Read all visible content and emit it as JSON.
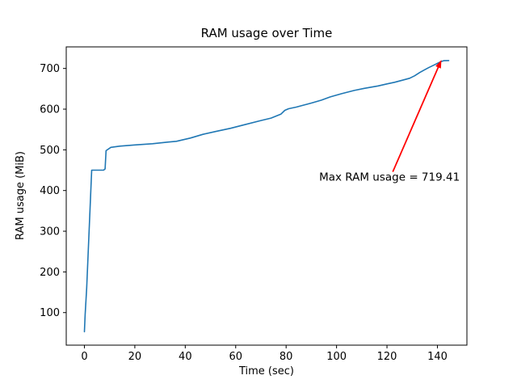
{
  "figure": {
    "background": "#ffffff"
  },
  "chart_data": {
    "type": "line",
    "title": "RAM usage over Time",
    "xlabel": "Time (sec)",
    "ylabel": "RAM usage (MiB)",
    "xlim": [
      -7.2,
      151.7
    ],
    "ylim": [
      20,
      753
    ],
    "xticks": [
      0,
      20,
      40,
      60,
      80,
      100,
      120,
      140
    ],
    "yticks": [
      100,
      200,
      300,
      400,
      500,
      600,
      700
    ],
    "grid": false,
    "legend": null,
    "line_color": "#1f77b4",
    "axis_color": "#000000",
    "series": [
      {
        "name": "RAM usage",
        "x": [
          0,
          0.3,
          0.9,
          2.9,
          7.6,
          8.2,
          8.6,
          10.5,
          14,
          20,
          27,
          33,
          36.5,
          42,
          47,
          52,
          58,
          63,
          70,
          74,
          78,
          79.5,
          81,
          84,
          87,
          90,
          94,
          97.5,
          102,
          107,
          111,
          116.5,
          120,
          123,
          126,
          129,
          131,
          133,
          135,
          136.5,
          138.5,
          140.5,
          141.5,
          142.5,
          144.5
        ],
        "y": [
          53,
          95,
          160,
          450,
          450,
          453,
          498,
          506,
          509,
          512,
          515,
          519,
          521,
          529,
          538,
          545,
          553,
          561,
          572,
          578,
          588,
          597,
          601,
          605,
          610,
          615,
          622,
          630,
          638,
          646,
          651,
          657,
          662,
          666,
          671,
          676,
          682,
          690,
          697,
          702,
          708,
          714,
          717,
          719,
          719.41
        ]
      }
    ],
    "max_ram_mib": 719.41,
    "annotation": {
      "text": "Max RAM usage = 719.41",
      "color": "#ff0000",
      "xy": [
        141.6,
        721
      ],
      "xytext": [
        93.1,
        433
      ],
      "arrow_from": [
        122.3,
        446
      ]
    }
  }
}
